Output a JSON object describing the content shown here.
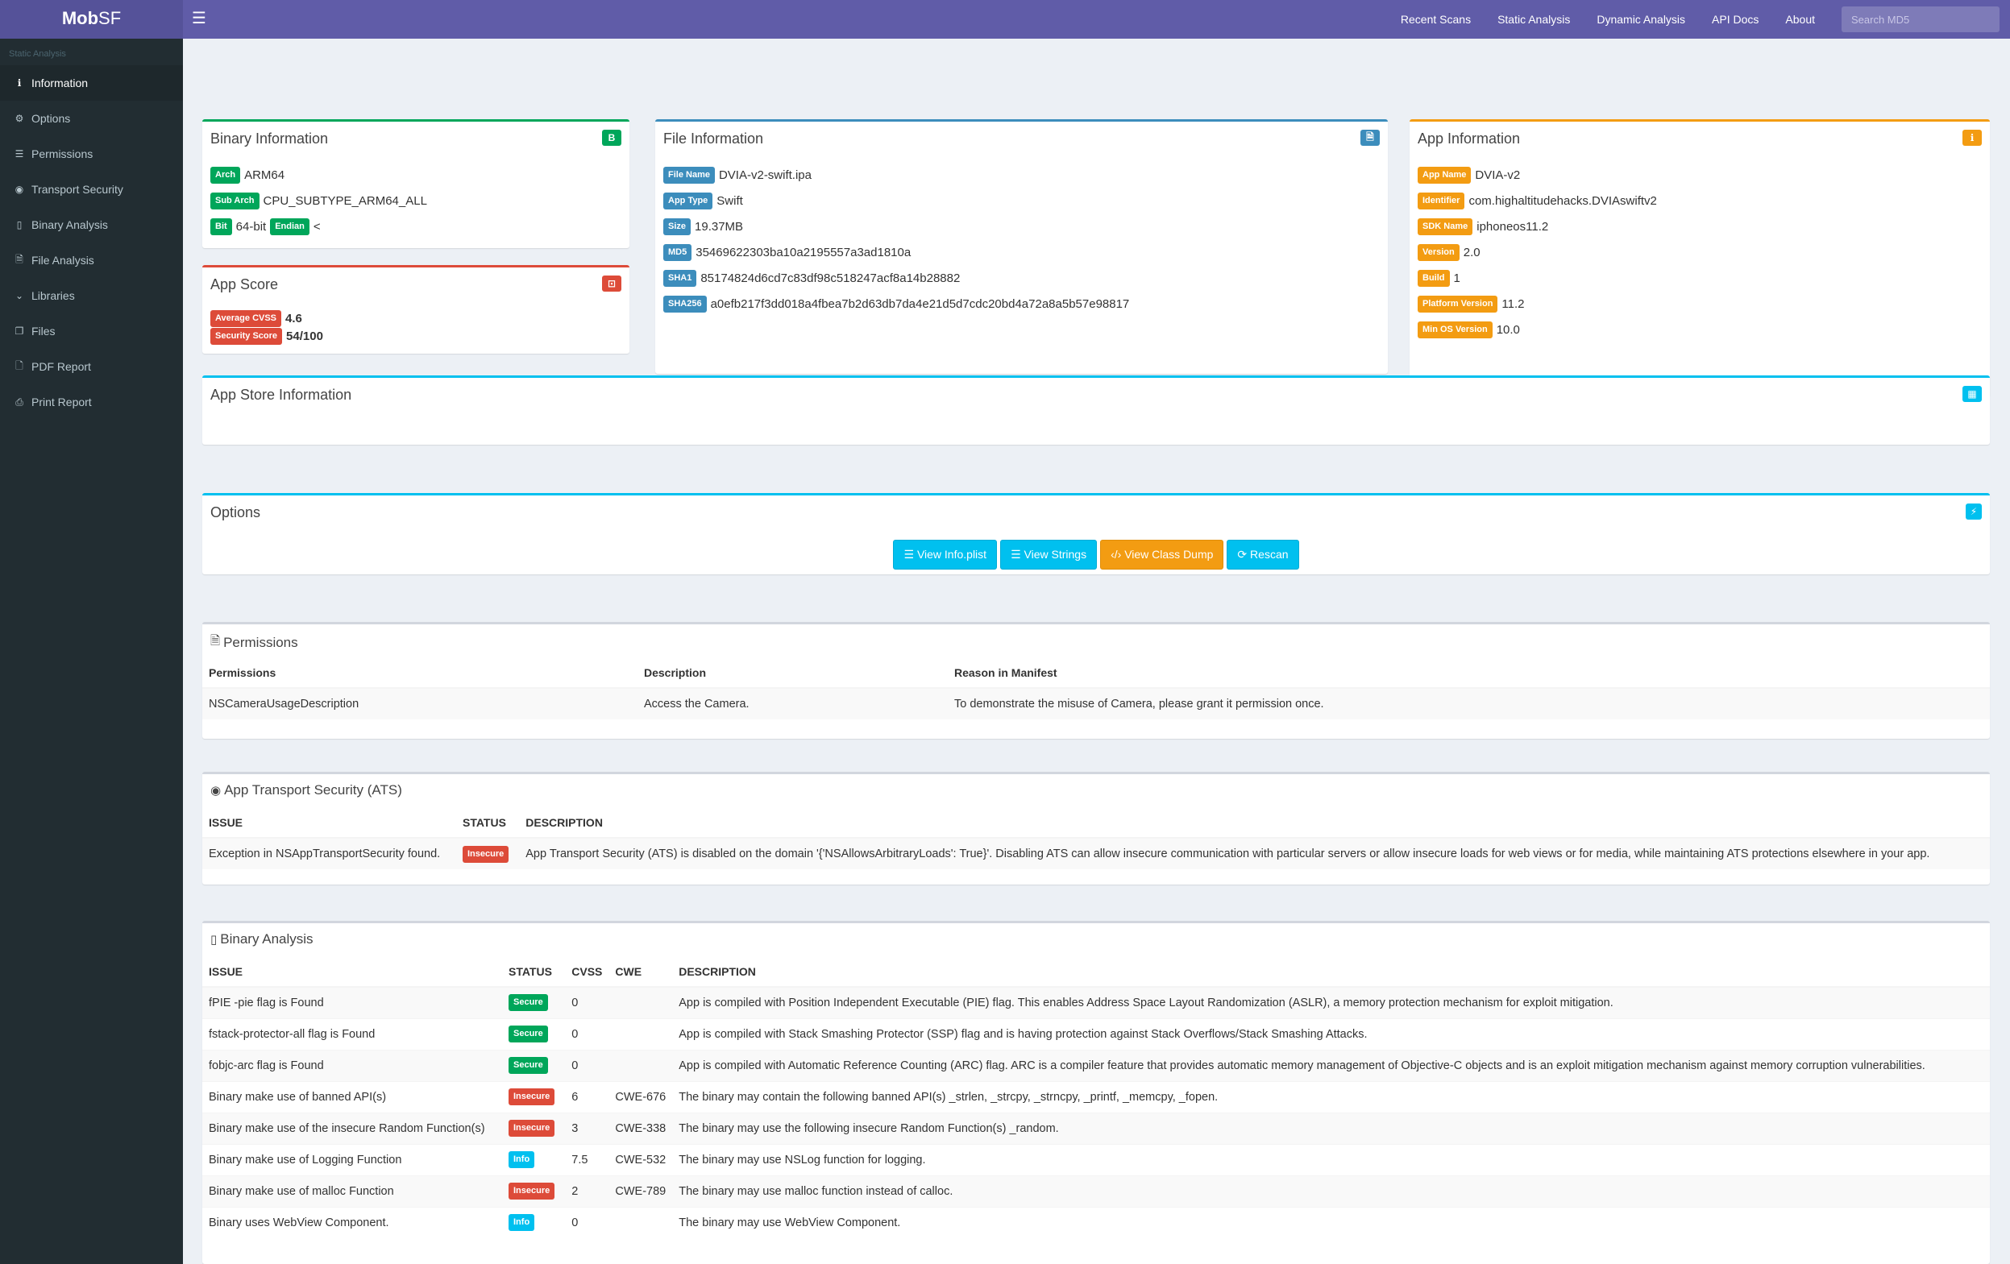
{
  "topbar": {
    "logo_bold": "Mob",
    "logo_rest": "SF",
    "menu_icon": "hamburger-icon",
    "links": [
      "Recent Scans",
      "Static Analysis",
      "Dynamic Analysis",
      "API Docs",
      "About"
    ],
    "search_placeholder": "Search MD5"
  },
  "sidebar": {
    "header": "Static Analysis",
    "items": [
      {
        "label": "Information",
        "icon": "info-icon",
        "glyph": "ℹ",
        "active": true
      },
      {
        "label": "Options",
        "icon": "cogs-icon",
        "glyph": "⚙"
      },
      {
        "label": "Permissions",
        "icon": "list-icon",
        "glyph": "☰"
      },
      {
        "label": "Transport Security",
        "icon": "eye-icon",
        "glyph": "◉"
      },
      {
        "label": "Binary Analysis",
        "icon": "mobile-icon",
        "glyph": "▯"
      },
      {
        "label": "File Analysis",
        "icon": "file-icon",
        "glyph": "🗎"
      },
      {
        "label": "Libraries",
        "icon": "chevron-down-icon",
        "glyph": "⌄"
      },
      {
        "label": "Files",
        "icon": "files-icon",
        "glyph": "❐"
      },
      {
        "label": "PDF Report",
        "icon": "pdf-icon",
        "glyph": "🗋"
      },
      {
        "label": "Print Report",
        "icon": "print-icon",
        "glyph": "⎙"
      }
    ]
  },
  "binary_info": {
    "title": "Binary Information",
    "badge": "B",
    "arch_label": "Arch",
    "arch": "ARM64",
    "subarch_label": "Sub Arch",
    "subarch": "CPU_SUBTYPE_ARM64_ALL",
    "bit_label": "Bit",
    "bit": "64-bit",
    "endian_label": "Endian",
    "endian": "<"
  },
  "app_score": {
    "title": "App Score",
    "cvss_label": "Average CVSS",
    "cvss": "4.6",
    "score_label": "Security Score",
    "score": "54/100"
  },
  "file_info": {
    "title": "File Information",
    "rows": [
      {
        "label": "File Name",
        "value": "DVIA-v2-swift.ipa"
      },
      {
        "label": "App Type",
        "value": "Swift"
      },
      {
        "label": "Size",
        "value": "19.37MB"
      },
      {
        "label": "MD5",
        "value": "35469622303ba10a2195557a3ad1810a"
      },
      {
        "label": "SHA1",
        "value": "85174824d6cd7c83df98c518247acf8a14b28882"
      },
      {
        "label": "SHA256",
        "value": "a0efb217f3dd018a4fbea7b2d63db7da4e21d5d7cdc20bd4a72a8a5b57e98817"
      }
    ]
  },
  "app_info": {
    "title": "App Information",
    "rows": [
      {
        "label": "App Name",
        "value": "DVIA-v2"
      },
      {
        "label": "Identifier",
        "value": "com.highaltitudehacks.DVIAswiftv2"
      },
      {
        "label": "SDK Name",
        "value": "iphoneos11.2"
      },
      {
        "label": "Version",
        "value": "2.0"
      },
      {
        "label": "Build",
        "value": "1"
      },
      {
        "label": "Platform Version",
        "value": "11.2"
      },
      {
        "label": "Min OS Version",
        "value": "10.0"
      }
    ]
  },
  "app_store": {
    "title": "App Store Information"
  },
  "options": {
    "title": "Options",
    "buttons": [
      "View Info.plist",
      "View Strings",
      "View Class Dump",
      "Rescan"
    ]
  },
  "permissions": {
    "title": "Permissions",
    "headers": [
      "Permissions",
      "Description",
      "Reason in Manifest"
    ],
    "rows": [
      [
        "NSCameraUsageDescription",
        "Access the Camera.",
        "To demonstrate the misuse of Camera, please grant it permission once."
      ]
    ]
  },
  "ats": {
    "title": "App Transport Security (ATS)",
    "headers": [
      "ISSUE",
      "STATUS",
      "DESCRIPTION"
    ],
    "rows": [
      {
        "issue": "Exception in NSAppTransportSecurity found.",
        "status": "Insecure",
        "desc": "App Transport Security (ATS) is disabled on the domain '{'NSAllowsArbitraryLoads': True}'. Disabling ATS can allow insecure communication with particular servers or allow insecure loads for web views or for media, while maintaining ATS protections elsewhere in your app."
      }
    ]
  },
  "binary_analysis": {
    "title": "Binary Analysis",
    "headers": [
      "ISSUE",
      "STATUS",
      "CVSS",
      "CWE",
      "DESCRIPTION"
    ],
    "rows": [
      {
        "issue": "fPIE -pie flag is Found",
        "status": "Secure",
        "cvss": "0",
        "cwe": "",
        "desc": "App is compiled with Position Independent Executable (PIE) flag. This enables Address Space Layout Randomization (ASLR), a memory protection mechanism for exploit mitigation."
      },
      {
        "issue": "fstack-protector-all flag is Found",
        "status": "Secure",
        "cvss": "0",
        "cwe": "",
        "desc": "App is compiled with Stack Smashing Protector (SSP) flag and is having protection against Stack Overflows/Stack Smashing Attacks."
      },
      {
        "issue": "fobjc-arc flag is Found",
        "status": "Secure",
        "cvss": "0",
        "cwe": "",
        "desc": "App is compiled with Automatic Reference Counting (ARC) flag. ARC is a compiler feature that provides automatic memory management of Objective-C objects and is an exploit mitigation mechanism against memory corruption vulnerabilities."
      },
      {
        "issue": "Binary make use of banned API(s)",
        "status": "Insecure",
        "cvss": "6",
        "cwe": "CWE-676",
        "desc": "The binary may contain the following banned API(s) _strlen, _strcpy, _strncpy, _printf, _memcpy, _fopen."
      },
      {
        "issue": "Binary make use of the insecure Random Function(s)",
        "status": "Insecure",
        "cvss": "3",
        "cwe": "CWE-338",
        "desc": "The binary may use the following insecure Random Function(s) _random."
      },
      {
        "issue": "Binary make use of Logging Function",
        "status": "Info",
        "cvss": "7.5",
        "cwe": "CWE-532",
        "desc": "The binary may use NSLog function for logging."
      },
      {
        "issue": "Binary make use of malloc Function",
        "status": "Insecure",
        "cvss": "2",
        "cwe": "CWE-789",
        "desc": "The binary may use malloc function instead of calloc."
      },
      {
        "issue": "Binary uses WebView Component.",
        "status": "Info",
        "cvss": "0",
        "cwe": "",
        "desc": "The binary may use WebView Component."
      }
    ]
  },
  "colors": {
    "topbar": "#605ca8",
    "sidebar": "#222d32",
    "green": "#00a65a",
    "blue": "#3c8dbc",
    "orange": "#f39c12",
    "red": "#dd4b39",
    "aqua": "#00c0ef"
  }
}
